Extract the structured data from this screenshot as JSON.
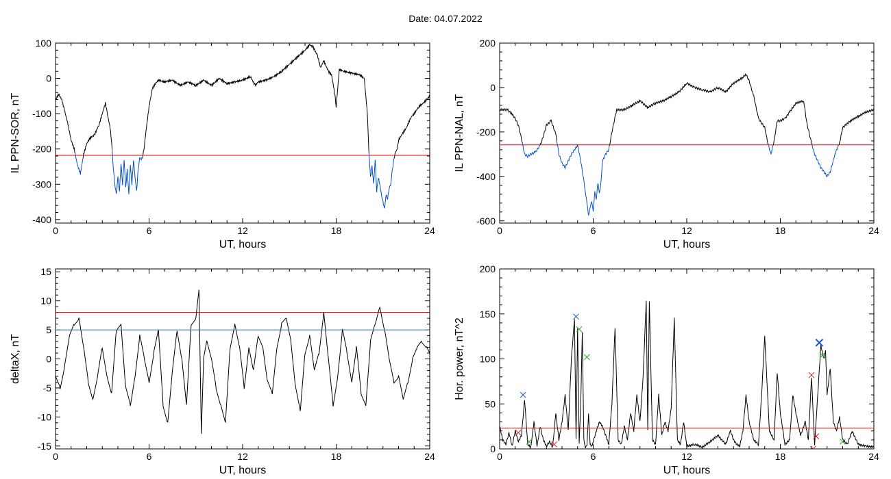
{
  "figure": {
    "title": "Date:  04.07.2022"
  },
  "colors": {
    "trace": "#000000",
    "below_threshold": "#0050c8",
    "red_threshold": "#e00000",
    "teal_threshold": "#1f7f8f",
    "marker_blue": "#1a4fd0",
    "marker_green": "#2aa02a",
    "marker_red": "#d02020"
  },
  "chart_data": [
    {
      "id": "sor",
      "type": "line",
      "xlabel": "UT, hours",
      "ylabel": "IL PPN-SOR, nT",
      "xlim": [
        0,
        24
      ],
      "ylim": [
        -410,
        100
      ],
      "xticks": [
        0,
        6,
        12,
        18,
        24
      ],
      "yticks": [
        -400,
        -300,
        -200,
        -100,
        0,
        100
      ],
      "thresholds": [
        {
          "value": -218,
          "color": "red"
        }
      ],
      "highlight_below": -218,
      "x": [
        0,
        0.2,
        0.4,
        0.6,
        0.8,
        1.0,
        1.2,
        1.4,
        1.6,
        1.8,
        2.0,
        2.2,
        2.5,
        2.8,
        3.0,
        3.2,
        3.3,
        3.5,
        3.6,
        3.7,
        3.8,
        3.9,
        4.0,
        4.1,
        4.2,
        4.3,
        4.4,
        4.5,
        4.6,
        4.7,
        4.8,
        4.9,
        5.0,
        5.1,
        5.2,
        5.3,
        5.4,
        5.5,
        5.6,
        5.7,
        5.8,
        6.0,
        6.2,
        6.4,
        6.6,
        7.0,
        7.5,
        8.0,
        8.5,
        9.0,
        9.5,
        10.0,
        10.5,
        11.0,
        11.5,
        12.0,
        12.5,
        12.8,
        13.0,
        13.5,
        14.0,
        14.5,
        15.0,
        15.5,
        16.0,
        16.3,
        16.5,
        16.8,
        17.0,
        17.2,
        17.5,
        17.7,
        17.9,
        18.0,
        18.2,
        18.5,
        19.0,
        19.5,
        19.8,
        20.0,
        20.1,
        20.2,
        20.3,
        20.4,
        20.5,
        20.6,
        20.7,
        20.8,
        20.9,
        21.0,
        21.1,
        21.2,
        21.3,
        21.4,
        21.5,
        21.6,
        21.7,
        21.8,
        21.9,
        22.0,
        22.2,
        22.5,
        22.8,
        23.0,
        23.3,
        23.6,
        24.0
      ],
      "values": [
        -60,
        -45,
        -60,
        -95,
        -130,
        -175,
        -200,
        -245,
        -270,
        -215,
        -185,
        -170,
        -160,
        -130,
        -100,
        -70,
        -95,
        -140,
        -180,
        -250,
        -300,
        -330,
        -280,
        -320,
        -240,
        -300,
        -230,
        -310,
        -260,
        -330,
        -245,
        -300,
        -230,
        -280,
        -320,
        -260,
        -225,
        -230,
        -220,
        -190,
        -150,
        -80,
        -30,
        -15,
        -5,
        -10,
        -5,
        -20,
        -10,
        -20,
        -5,
        -20,
        0,
        -15,
        -10,
        -5,
        5,
        -20,
        -10,
        -5,
        5,
        20,
        40,
        60,
        80,
        95,
        90,
        65,
        30,
        50,
        20,
        10,
        -40,
        -80,
        25,
        20,
        15,
        10,
        0,
        -100,
        -210,
        -280,
        -250,
        -300,
        -230,
        -320,
        -280,
        -300,
        -330,
        -350,
        -370,
        -330,
        -340,
        -310,
        -300,
        -260,
        -230,
        -210,
        -200,
        -175,
        -160,
        -140,
        -110,
        -100,
        -80,
        -70,
        -50
      ]
    },
    {
      "id": "nal",
      "type": "line",
      "xlabel": "UT, hours",
      "ylabel": "IL PPN-NAL, nT",
      "xlim": [
        0,
        24
      ],
      "ylim": [
        -610,
        200
      ],
      "xticks": [
        0,
        6,
        12,
        18,
        24
      ],
      "yticks": [
        -600,
        -400,
        -200,
        0,
        200
      ],
      "thresholds": [
        {
          "value": -258,
          "color": "red"
        }
      ],
      "highlight_below": -258,
      "x": [
        0,
        0.5,
        0.8,
        1.0,
        1.2,
        1.4,
        1.6,
        1.8,
        2.0,
        2.3,
        2.6,
        2.8,
        3.0,
        3.3,
        3.6,
        3.8,
        4.0,
        4.2,
        4.4,
        4.6,
        4.8,
        5.0,
        5.2,
        5.4,
        5.5,
        5.6,
        5.7,
        5.8,
        5.9,
        6.0,
        6.1,
        6.2,
        6.3,
        6.4,
        6.5,
        6.6,
        6.8,
        7.0,
        7.2,
        7.5,
        8.0,
        8.5,
        9.0,
        9.5,
        10.0,
        10.5,
        11.0,
        11.5,
        12.0,
        12.5,
        13.0,
        13.5,
        14.0,
        14.5,
        15.0,
        15.5,
        15.8,
        16.0,
        16.3,
        16.6,
        17.0,
        17.2,
        17.4,
        17.6,
        17.8,
        18.0,
        18.3,
        18.6,
        19.0,
        19.5,
        19.7,
        20.0,
        20.2,
        20.4,
        20.6,
        20.8,
        21.0,
        21.2,
        21.5,
        21.8,
        22.0,
        22.5,
        23.0,
        23.5,
        24.0
      ],
      "values": [
        -100,
        -100,
        -120,
        -140,
        -170,
        -230,
        -300,
        -310,
        -300,
        -290,
        -260,
        -220,
        -170,
        -150,
        -210,
        -300,
        -340,
        -360,
        -330,
        -300,
        -280,
        -260,
        -330,
        -420,
        -470,
        -520,
        -580,
        -540,
        -510,
        -560,
        -470,
        -500,
        -430,
        -480,
        -420,
        -330,
        -300,
        -280,
        -200,
        -100,
        -100,
        -80,
        -60,
        -90,
        -70,
        -60,
        -40,
        -20,
        20,
        0,
        -10,
        -20,
        0,
        -20,
        20,
        40,
        60,
        30,
        -40,
        -140,
        -180,
        -250,
        -300,
        -240,
        -150,
        -150,
        -140,
        -110,
        -70,
        -60,
        -160,
        -250,
        -300,
        -330,
        -360,
        -380,
        -400,
        -380,
        -300,
        -250,
        -180,
        -150,
        -130,
        -110,
        -100
      ]
    },
    {
      "id": "deltax",
      "type": "line",
      "xlabel": "UT, hours",
      "ylabel": "deltaX, nT",
      "xlim": [
        0,
        24
      ],
      "ylim": [
        -15.5,
        15.5
      ],
      "xticks": [
        0,
        6,
        12,
        18,
        24
      ],
      "yticks": [
        -15,
        -10,
        -5,
        0,
        5,
        10,
        15
      ],
      "thresholds": [
        {
          "value": 8,
          "color": "red"
        },
        {
          "value": 5,
          "color": "teal"
        }
      ],
      "x": [
        0,
        0.3,
        0.6,
        0.9,
        1.2,
        1.5,
        1.8,
        2.1,
        2.4,
        2.7,
        3.0,
        3.3,
        3.6,
        3.9,
        4.2,
        4.5,
        4.8,
        5.1,
        5.4,
        5.7,
        6.0,
        6.3,
        6.6,
        6.9,
        7.2,
        7.5,
        7.8,
        8.1,
        8.4,
        8.7,
        9.0,
        9.2,
        9.35,
        9.5,
        9.7,
        10.0,
        10.3,
        10.6,
        10.9,
        11.2,
        11.5,
        11.8,
        12.1,
        12.4,
        12.7,
        13.0,
        13.3,
        13.6,
        13.9,
        14.2,
        14.5,
        14.8,
        15.1,
        15.4,
        15.7,
        16.0,
        16.3,
        16.6,
        16.9,
        17.2,
        17.5,
        17.8,
        18.1,
        18.4,
        18.7,
        19.0,
        19.3,
        19.6,
        19.9,
        20.2,
        20.5,
        20.8,
        21.1,
        21.4,
        21.7,
        22.0,
        22.3,
        22.6,
        22.9,
        23.2,
        23.5,
        23.8,
        24.0
      ],
      "values": [
        -3,
        -5,
        -1,
        4,
        6,
        7,
        2,
        -4,
        -7,
        -3,
        2,
        -3,
        -6,
        5,
        6,
        -5,
        -8,
        -3,
        4,
        0,
        -4,
        1,
        5,
        -8,
        -11,
        -2,
        5,
        0,
        -8,
        6,
        7,
        12,
        -13,
        0,
        3,
        0,
        -5,
        -8,
        -11,
        2,
        6,
        2,
        -5,
        2,
        -2,
        4,
        2,
        -4,
        -6,
        2,
        6,
        7,
        3,
        -5,
        -9,
        1,
        4,
        -2,
        1,
        8,
        0,
        -8,
        -3,
        5,
        1,
        -4,
        2,
        -6,
        -8,
        3,
        6,
        9,
        5,
        0,
        -4,
        -3,
        -7,
        -4,
        0,
        2,
        3,
        2,
        1
      ]
    },
    {
      "id": "power",
      "type": "line",
      "xlabel": "UT, hours",
      "ylabel": "Hor. power, nT^2",
      "xlim": [
        0,
        24
      ],
      "ylim": [
        0,
        200
      ],
      "xticks": [
        0,
        6,
        12,
        18,
        24
      ],
      "yticks": [
        0,
        50,
        100,
        150,
        200
      ],
      "thresholds": [
        {
          "value": 23,
          "color": "red"
        }
      ],
      "x": [
        0,
        0.2,
        0.4,
        0.6,
        0.8,
        1.0,
        1.2,
        1.4,
        1.6,
        1.8,
        2.0,
        2.2,
        2.4,
        2.6,
        2.8,
        3.0,
        3.2,
        3.4,
        3.6,
        3.8,
        4.0,
        4.2,
        4.4,
        4.6,
        4.8,
        4.9,
        5.0,
        5.1,
        5.2,
        5.3,
        5.4,
        5.5,
        5.6,
        5.7,
        5.8,
        5.9,
        6.0,
        6.2,
        6.4,
        6.6,
        6.8,
        7.0,
        7.2,
        7.4,
        7.6,
        7.8,
        8.0,
        8.2,
        8.4,
        8.6,
        8.8,
        9.0,
        9.2,
        9.4,
        9.5,
        9.6,
        9.8,
        10.0,
        10.2,
        10.4,
        10.6,
        10.8,
        11.0,
        11.2,
        11.4,
        11.6,
        11.8,
        12.0,
        12.5,
        13.0,
        13.5,
        14.0,
        14.5,
        14.8,
        15.0,
        15.2,
        15.4,
        15.6,
        15.8,
        16.0,
        16.3,
        16.6,
        16.8,
        17.0,
        17.3,
        17.6,
        17.8,
        18.0,
        18.3,
        18.6,
        18.8,
        19.0,
        19.3,
        19.6,
        19.8,
        20.0,
        20.2,
        20.4,
        20.6,
        20.8,
        20.9,
        21.0,
        21.2,
        21.4,
        21.6,
        21.8,
        22.0,
        22.3,
        22.6,
        23.0,
        23.5,
        24.0
      ],
      "values": [
        25,
        10,
        5,
        18,
        3,
        20,
        8,
        15,
        55,
        5,
        2,
        30,
        3,
        25,
        10,
        3,
        8,
        2,
        40,
        10,
        30,
        60,
        20,
        100,
        145,
        10,
        135,
        5,
        50,
        130,
        10,
        2,
        3,
        40,
        5,
        3,
        8,
        20,
        30,
        25,
        15,
        5,
        50,
        135,
        10,
        5,
        25,
        10,
        40,
        20,
        60,
        30,
        80,
        165,
        20,
        165,
        10,
        5,
        60,
        15,
        30,
        20,
        45,
        145,
        10,
        5,
        30,
        3,
        5,
        2,
        8,
        15,
        5,
        20,
        10,
        5,
        3,
        20,
        60,
        30,
        10,
        5,
        60,
        125,
        20,
        10,
        85,
        40,
        5,
        10,
        60,
        40,
        15,
        30,
        10,
        80,
        5,
        60,
        115,
        100,
        110,
        60,
        90,
        30,
        20,
        35,
        10,
        5,
        20,
        5,
        3,
        2
      ],
      "markers": [
        {
          "x": 1.5,
          "y": 60,
          "color": "blue",
          "size": "small"
        },
        {
          "x": 4.9,
          "y": 147,
          "color": "blue",
          "size": "small"
        },
        {
          "x": 20.5,
          "y": 118,
          "color": "blue",
          "size": "large"
        },
        {
          "x": 5.1,
          "y": 133,
          "color": "green",
          "size": "small"
        },
        {
          "x": 5.6,
          "y": 102,
          "color": "green",
          "size": "small"
        },
        {
          "x": 1.9,
          "y": 8,
          "color": "green",
          "size": "small"
        },
        {
          "x": 20.7,
          "y": 104,
          "color": "green",
          "size": "small"
        },
        {
          "x": 22.0,
          "y": 8,
          "color": "green",
          "size": "small"
        },
        {
          "x": 1.2,
          "y": 18,
          "color": "red",
          "size": "small"
        },
        {
          "x": 3.5,
          "y": 5,
          "color": "red",
          "size": "small"
        },
        {
          "x": 20.0,
          "y": 82,
          "color": "red",
          "size": "small"
        },
        {
          "x": 20.3,
          "y": 14,
          "color": "red",
          "size": "small"
        },
        {
          "x": 20.1,
          "y": 0,
          "color": "red",
          "size": "small"
        }
      ]
    }
  ]
}
